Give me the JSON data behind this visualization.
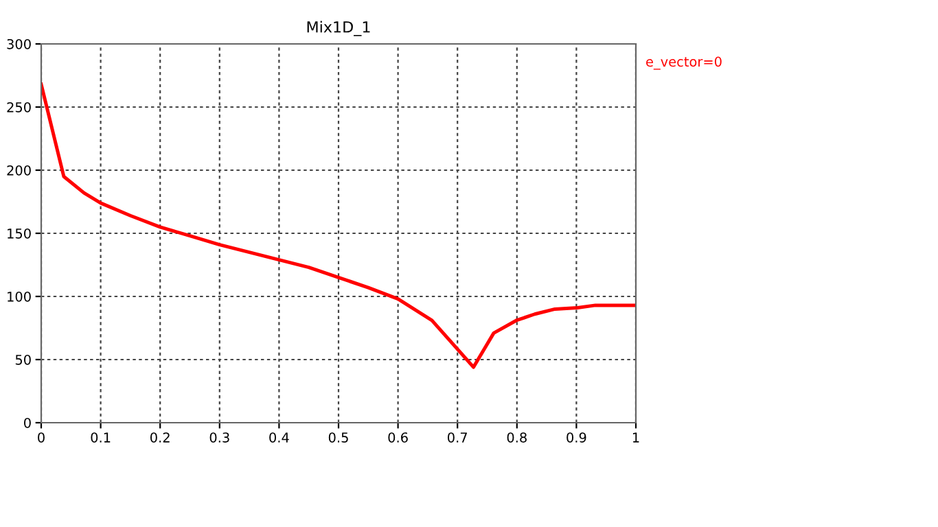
{
  "chart_data": {
    "type": "line",
    "title": "Mix1D_1",
    "x": [
      0,
      0.038,
      0.072,
      0.1,
      0.15,
      0.2,
      0.25,
      0.3,
      0.35,
      0.4,
      0.45,
      0.5,
      0.55,
      0.6,
      0.657,
      0.727,
      0.761,
      0.799,
      0.83,
      0.864,
      0.902,
      0.932,
      1.0
    ],
    "series": [
      {
        "name": "e_vector=0",
        "color": "#ff0000",
        "values": [
          268,
          195,
          182,
          174,
          164,
          155,
          148,
          141,
          135,
          129,
          123,
          115,
          107,
          98,
          81,
          44,
          71,
          81,
          86,
          90,
          91,
          93,
          93
        ]
      }
    ],
    "xlim": [
      0,
      1
    ],
    "ylim": [
      0,
      300
    ],
    "xticks": [
      0,
      0.1,
      0.2,
      0.3,
      0.4,
      0.5,
      0.6,
      0.7,
      0.8,
      0.9,
      1
    ],
    "yticks": [
      0,
      50,
      100,
      150,
      200,
      250,
      300
    ],
    "grid": true,
    "legend": "top right",
    "marker": "none",
    "line_style": "solid"
  }
}
